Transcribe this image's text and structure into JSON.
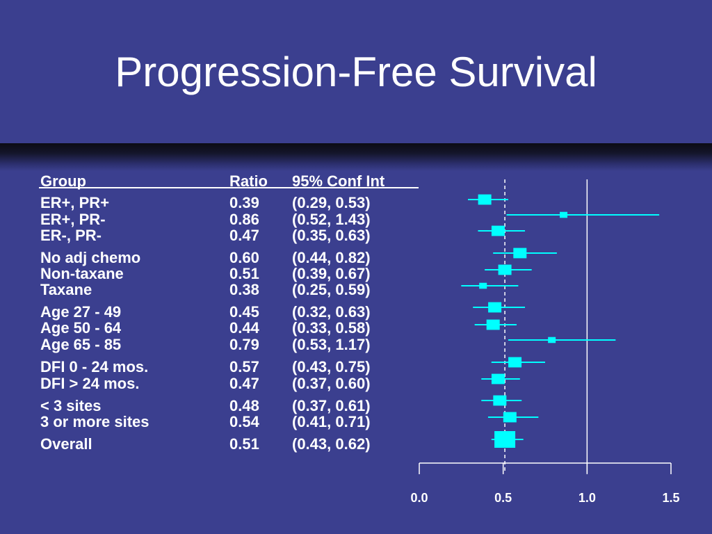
{
  "title": "Progression-Free Survival",
  "headers": {
    "group": "Group",
    "ratio": "Ratio",
    "ci": "95% Conf Int"
  },
  "colors": {
    "background": "#3b3f8f",
    "marker": "#00ffff",
    "text": "#ffffff"
  },
  "chart_data": {
    "type": "scatter",
    "subtype": "forest-plot",
    "x_ticks": [
      "0.0",
      "0.5",
      "1.0",
      "1.5"
    ],
    "xlim": [
      0,
      1.5
    ],
    "reference_lines": [
      {
        "value": 0.51,
        "style": "dashed"
      },
      {
        "value": 1.0,
        "style": "solid"
      }
    ],
    "rows": [
      {
        "group": "ER+, PR+",
        "ratio": "0.39",
        "ci": "(0.29, 0.53)",
        "value": 0.39,
        "low": 0.29,
        "high": 0.53,
        "size": 2
      },
      {
        "group": "ER+, PR-",
        "ratio": "0.86",
        "ci": "(0.52, 1.43)",
        "value": 0.86,
        "low": 0.52,
        "high": 1.43,
        "size": 1
      },
      {
        "group": "ER-, PR-",
        "ratio": "0.47",
        "ci": "(0.35, 0.63)",
        "value": 0.47,
        "low": 0.35,
        "high": 0.63,
        "size": 2
      },
      {
        "group": "No adj chemo",
        "ratio": "0.60",
        "ci": "(0.44, 0.82)",
        "value": 0.6,
        "low": 0.44,
        "high": 0.82,
        "size": 2
      },
      {
        "group": "Non-taxane",
        "ratio": "0.51",
        "ci": "(0.39, 0.67)",
        "value": 0.51,
        "low": 0.39,
        "high": 0.67,
        "size": 2
      },
      {
        "group": "Taxane",
        "ratio": "0.38",
        "ci": "(0.25, 0.59)",
        "value": 0.38,
        "low": 0.25,
        "high": 0.59,
        "size": 1
      },
      {
        "group": "Age 27 - 49",
        "ratio": "0.45",
        "ci": "(0.32, 0.63)",
        "value": 0.45,
        "low": 0.32,
        "high": 0.63,
        "size": 2
      },
      {
        "group": "Age 50 - 64",
        "ratio": "0.44",
        "ci": "(0.33, 0.58)",
        "value": 0.44,
        "low": 0.33,
        "high": 0.58,
        "size": 2
      },
      {
        "group": "Age 65 - 85",
        "ratio": "0.79",
        "ci": "(0.53, 1.17)",
        "value": 0.79,
        "low": 0.53,
        "high": 1.17,
        "size": 1
      },
      {
        "group": "DFI 0 - 24 mos.",
        "ratio": "0.57",
        "ci": "(0.43, 0.75)",
        "value": 0.57,
        "low": 0.43,
        "high": 0.75,
        "size": 2
      },
      {
        "group": "DFI > 24 mos.",
        "ratio": "0.47",
        "ci": "(0.37, 0.60)",
        "value": 0.47,
        "low": 0.37,
        "high": 0.6,
        "size": 2
      },
      {
        "group": "< 3 sites",
        "ratio": "0.48",
        "ci": "(0.37, 0.61)",
        "value": 0.48,
        "low": 0.37,
        "high": 0.61,
        "size": 2
      },
      {
        "group": "3 or more sites",
        "ratio": "0.54",
        "ci": "(0.41, 0.71)",
        "value": 0.54,
        "low": 0.41,
        "high": 0.71,
        "size": 2
      },
      {
        "group": "Overall",
        "ratio": "0.51",
        "ci": "(0.43, 0.62)",
        "value": 0.51,
        "low": 0.43,
        "high": 0.62,
        "size": 3
      }
    ]
  }
}
